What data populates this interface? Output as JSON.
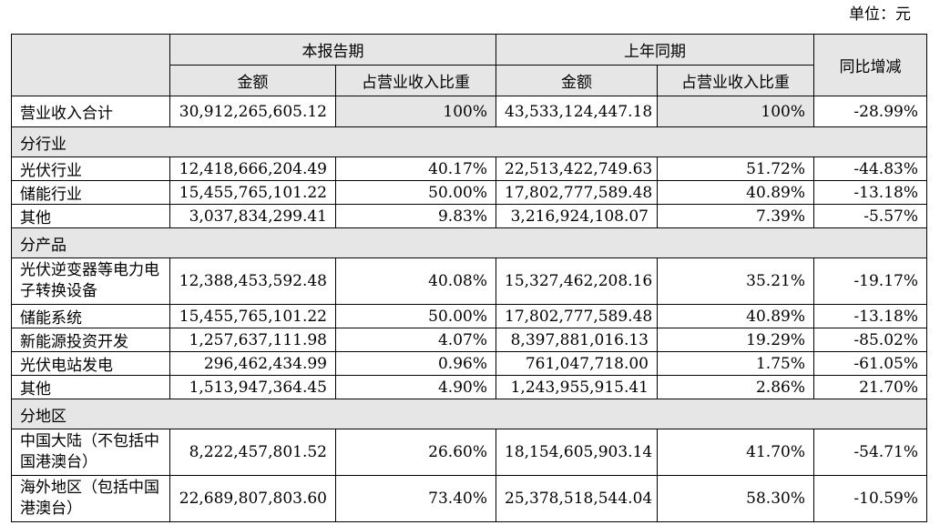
{
  "unit": "单位：元",
  "header": {
    "current_period": "本报告期",
    "prior_period": "上年同期",
    "yoy": "同比增减",
    "amount": "金额",
    "ratio": "占营业收入比重"
  },
  "total": {
    "label": "营业收入合计",
    "cur_amount": "30,912,265,605.12",
    "cur_ratio": "100%",
    "prev_amount": "43,533,124,447.18",
    "prev_ratio": "100%",
    "yoy": "-28.99%"
  },
  "sections": [
    {
      "title": "分行业",
      "rows": [
        {
          "label": "光伏行业",
          "cur_amount": "12,418,666,204.49",
          "cur_ratio": "40.17%",
          "prev_amount": "22,513,422,749.63",
          "prev_ratio": "51.72%",
          "yoy": "-44.83%"
        },
        {
          "label": "储能行业",
          "cur_amount": "15,455,765,101.22",
          "cur_ratio": "50.00%",
          "prev_amount": "17,802,777,589.48",
          "prev_ratio": "40.89%",
          "yoy": "-13.18%"
        },
        {
          "label": "其他",
          "cur_amount": "3,037,834,299.41",
          "cur_ratio": "9.83%",
          "prev_amount": "3,216,924,108.07",
          "prev_ratio": "7.39%",
          "yoy": "-5.57%"
        }
      ]
    },
    {
      "title": "分产品",
      "rows": [
        {
          "label": "光伏逆变器等电力电子转换设备",
          "cur_amount": "12,388,453,592.48",
          "cur_ratio": "40.08%",
          "prev_amount": "15,327,462,208.16",
          "prev_ratio": "35.21%",
          "yoy": "-19.17%"
        },
        {
          "label": "储能系统",
          "cur_amount": "15,455,765,101.22",
          "cur_ratio": "50.00%",
          "prev_amount": "17,802,777,589.48",
          "prev_ratio": "40.89%",
          "yoy": "-13.18%"
        },
        {
          "label": "新能源投资开发",
          "cur_amount": "1,257,637,111.98",
          "cur_ratio": "4.07%",
          "prev_amount": "8,397,881,016.13",
          "prev_ratio": "19.29%",
          "yoy": "-85.02%"
        },
        {
          "label": "光伏电站发电",
          "cur_amount": "296,462,434.99",
          "cur_ratio": "0.96%",
          "prev_amount": "761,047,718.00",
          "prev_ratio": "1.75%",
          "yoy": "-61.05%"
        },
        {
          "label": "其他",
          "cur_amount": "1,513,947,364.45",
          "cur_ratio": "4.90%",
          "prev_amount": "1,243,955,915.41",
          "prev_ratio": "2.86%",
          "yoy": "21.70%"
        }
      ]
    },
    {
      "title": "分地区",
      "rows": [
        {
          "label": "中国大陆（不包括中国港澳台）",
          "cur_amount": "8,222,457,801.52",
          "cur_ratio": "26.60%",
          "prev_amount": "18,154,605,903.14",
          "prev_ratio": "41.70%",
          "yoy": "-54.71%"
        },
        {
          "label": "海外地区（包括中国港澳台）",
          "cur_amount": "22,689,807,803.60",
          "cur_ratio": "73.40%",
          "prev_amount": "25,378,518,544.04",
          "prev_ratio": "58.30%",
          "yoy": "-10.59%"
        }
      ]
    }
  ]
}
